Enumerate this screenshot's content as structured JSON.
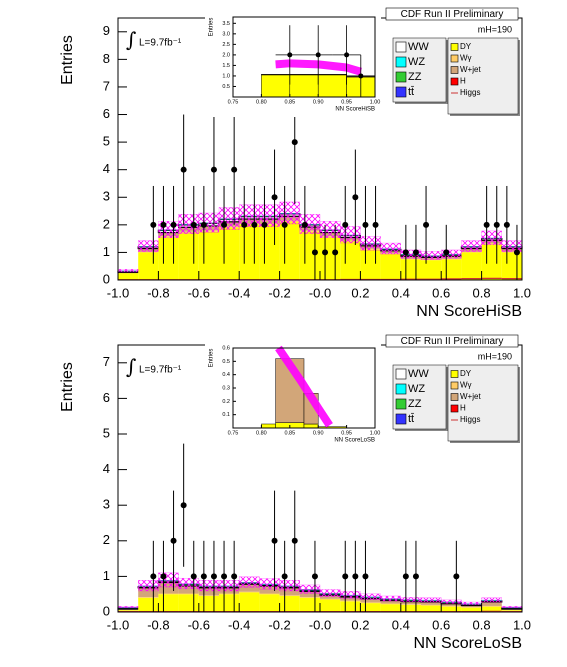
{
  "chart_data": [
    {
      "type": "stacked_histogram",
      "title": "CDF Run II Preliminary",
      "mass_label": "mH=190",
      "lumi_symbol": "∫",
      "lumi": "L=9.7fb⁻¹",
      "xlabel": "NN ScoreHiSB",
      "ylabel": "Entries",
      "xlim": [
        -1,
        1
      ],
      "ylim": [
        0,
        9.5
      ],
      "xticks": [
        {
          "value": -1,
          "label": "-1.0"
        },
        -0.8,
        -0.6,
        -0.4,
        -0.2,
        {
          "value": 0,
          "label": "-0.0"
        },
        0.2,
        0.4,
        0.6,
        0.8,
        {
          "value": 1,
          "label": "1.0"
        }
      ],
      "yticks": [
        0,
        1,
        2,
        3,
        4,
        5,
        6,
        7,
        8,
        9
      ],
      "bins": [
        -1,
        -0.9,
        -0.8,
        -0.7,
        -0.6,
        -0.5,
        -0.4,
        -0.3,
        -0.2,
        -0.1,
        0,
        0.1,
        0.2,
        0.3,
        0.4,
        0.5,
        0.6,
        0.7,
        0.8,
        0.9,
        1
      ],
      "series": [
        {
          "name": "DY",
          "color": "#ffff00",
          "values": [
            0.25,
            1.0,
            1.55,
            1.7,
            1.75,
            1.9,
            2.0,
            2.0,
            2.1,
            1.75,
            1.55,
            1.4,
            1.1,
            0.95,
            0.75,
            0.72,
            0.75,
            1.0,
            1.3,
            1.0
          ]
        },
        {
          "name": "Wγ",
          "color": "#ffcc66",
          "values": [
            0.01,
            0.03,
            0.04,
            0.05,
            0.05,
            0.05,
            0.05,
            0.05,
            0.05,
            0.04,
            0.04,
            0.03,
            0.03,
            0.02,
            0.02,
            0.02,
            0.02,
            0.03,
            0.03,
            0.03
          ]
        },
        {
          "name": "W+jet",
          "color": "#d2a679",
          "values": [
            0.02,
            0.1,
            0.12,
            0.15,
            0.15,
            0.15,
            0.15,
            0.15,
            0.15,
            0.12,
            0.12,
            0.1,
            0.1,
            0.08,
            0.08,
            0.07,
            0.08,
            0.1,
            0.1,
            0.1
          ]
        },
        {
          "name": "H",
          "color": "#ff0000",
          "values": [
            0.01,
            0.01,
            0.01,
            0.01,
            0.01,
            0.01,
            0.01,
            0.01,
            0.01,
            0.01,
            0.01,
            0.01,
            0.01,
            0.01,
            0.01,
            0.01,
            0.01,
            0.01,
            0.01,
            0.01
          ]
        },
        {
          "name": "WW",
          "color": "#ffffff",
          "values": [
            0.02,
            0.06,
            0.08,
            0.09,
            0.09,
            0.09,
            0.09,
            0.09,
            0.09,
            0.08,
            0.08,
            0.07,
            0.06,
            0.05,
            0.05,
            0.04,
            0.05,
            0.06,
            0.06,
            0.06
          ]
        },
        {
          "name": "WZ",
          "color": "#00ffff",
          "values": [
            0.01,
            0.01,
            0.01,
            0.01,
            0.01,
            0.01,
            0.01,
            0.01,
            0.01,
            0.01,
            0.01,
            0.01,
            0.01,
            0.01,
            0.01,
            0.01,
            0.01,
            0.01,
            0.01,
            0.01
          ]
        },
        {
          "name": "ZZ",
          "color": "#33cc33",
          "values": [
            0.01,
            0.01,
            0.01,
            0.01,
            0.01,
            0.01,
            0.01,
            0.01,
            0.01,
            0.01,
            0.01,
            0.01,
            0.01,
            0.01,
            0.01,
            0.01,
            0.01,
            0.01,
            0.01,
            0.01
          ]
        },
        {
          "name": "tt̄",
          "color": "#3333ff",
          "values": [
            0.01,
            0.01,
            0.01,
            0.01,
            0.01,
            0.01,
            0.01,
            0.01,
            0.01,
            0.01,
            0.01,
            0.01,
            0.01,
            0.01,
            0.01,
            0.01,
            0.01,
            0.01,
            0.01,
            0.01
          ]
        },
        {
          "name": "Higgs",
          "color": "#cc3333",
          "style": "line",
          "values": [
            0.01,
            0.01,
            0.01,
            0.01,
            0.01,
            0.01,
            0.01,
            0.01,
            0.01,
            0.01,
            0.01,
            0.02,
            0.02,
            0.02,
            0.03,
            0.03,
            0.04,
            0.05,
            0.06,
            0.05
          ]
        }
      ],
      "uncertainty": [
        0.05,
        0.2,
        0.3,
        0.35,
        0.35,
        0.4,
        0.4,
        0.4,
        0.4,
        0.35,
        0.3,
        0.3,
        0.25,
        0.2,
        0.15,
        0.15,
        0.15,
        0.2,
        0.25,
        0.2
      ],
      "uncertainty_color": "#ff00ff",
      "data": {
        "color": "#000000",
        "x": [
          -0.825,
          -0.775,
          -0.725,
          -0.675,
          -0.625,
          -0.575,
          -0.525,
          -0.475,
          -0.425,
          -0.375,
          -0.325,
          -0.275,
          -0.225,
          -0.175,
          -0.125,
          -0.075,
          -0.025,
          0.025,
          0.075,
          0.125,
          0.175,
          0.225,
          0.275,
          0.425,
          0.475,
          0.525,
          0.625,
          0.825,
          0.875,
          0.925,
          0.975
        ],
        "values": [
          2,
          2,
          2,
          4,
          2,
          2,
          4,
          2,
          4,
          2,
          2,
          2,
          3,
          2,
          5,
          2,
          1,
          1,
          1,
          2,
          3,
          2,
          2,
          1,
          1,
          2,
          1,
          2,
          2,
          2,
          1
        ],
        "errors": [
          1.41,
          1.41,
          1.41,
          2,
          1.41,
          1.41,
          2,
          1.41,
          2,
          1.41,
          1.41,
          1.41,
          1.73,
          1.41,
          2.24,
          1.41,
          1,
          1,
          1,
          1.41,
          1.73,
          1.41,
          1.41,
          1,
          1,
          1.41,
          1,
          1.41,
          1.41,
          1.41,
          1
        ]
      }
    },
    {
      "type": "inset_histogram",
      "xlabel": "NN ScoreHiSB",
      "ylabel": "Entries",
      "xlim": [
        0.75,
        1
      ],
      "ylim": [
        0,
        3.8
      ],
      "xticks": [
        0.75,
        {
          "value": 0.8,
          "label": "0.80"
        },
        0.85,
        {
          "value": 0.9,
          "label": "0.90"
        },
        0.95,
        {
          "value": 1,
          "label": "1.00"
        }
      ],
      "yticks": [
        0.5,
        {
          "value": 1,
          "label": "1.0"
        },
        1.5,
        {
          "value": 2,
          "label": "2.0"
        },
        2.5,
        {
          "value": 3,
          "label": "3.0"
        },
        3.5
      ],
      "bins": [
        0.75,
        0.8,
        0.85,
        0.9,
        0.95,
        1
      ],
      "series": [
        {
          "color": "#ffff00",
          "values": [
            0,
            1.05,
            1.05,
            1.05,
            0.95
          ]
        },
        {
          "color": "#d2a679",
          "values": [
            0,
            0.03,
            0.03,
            0.03,
            0.03
          ]
        }
      ],
      "band": {
        "color": "#ff00ff",
        "x": [
          0.825,
          0.85,
          0.9,
          0.95,
          0.975
        ],
        "values": [
          1.55,
          1.6,
          1.55,
          1.4,
          1.2
        ]
      },
      "data": {
        "color": "#000000",
        "x": [
          0.85,
          0.9,
          0.95,
          0.975
        ],
        "values": [
          2,
          2,
          2,
          1
        ],
        "errors": [
          1.41,
          1.41,
          1.41,
          1
        ]
      }
    },
    {
      "type": "stacked_histogram",
      "title": "CDF Run II Preliminary",
      "mass_label": "mH=190",
      "lumi_symbol": "∫",
      "lumi": "L=9.7fb⁻¹",
      "xlabel": "NN ScoreLoSB",
      "ylabel": "Entries",
      "xlim": [
        -1,
        1
      ],
      "ylim": [
        0,
        7.5
      ],
      "xticks": [
        {
          "value": -1,
          "label": "-1.0"
        },
        -0.8,
        -0.6,
        -0.4,
        -0.2,
        {
          "value": 0,
          "label": "-0.0"
        },
        0.2,
        0.4,
        0.6,
        0.8,
        {
          "value": 1,
          "label": "1.0"
        }
      ],
      "yticks": [
        0,
        1,
        2,
        3,
        4,
        5,
        6,
        7
      ],
      "bins": [
        -1,
        -0.9,
        -0.8,
        -0.7,
        -0.6,
        -0.5,
        -0.4,
        -0.3,
        -0.2,
        -0.1,
        0,
        0.1,
        0.2,
        0.3,
        0.4,
        0.5,
        0.6,
        0.7,
        0.8,
        0.9,
        1
      ],
      "series": [
        {
          "name": "DY",
          "color": "#ffff00",
          "values": [
            0.05,
            0.4,
            0.5,
            0.5,
            0.45,
            0.5,
            0.55,
            0.5,
            0.45,
            0.4,
            0.35,
            0.3,
            0.25,
            0.22,
            0.2,
            0.18,
            0.15,
            0.12,
            0.15,
            0.05
          ]
        },
        {
          "name": "Wγ",
          "color": "#ffcc66",
          "values": [
            0.01,
            0.02,
            0.02,
            0.02,
            0.02,
            0.02,
            0.02,
            0.02,
            0.02,
            0.02,
            0.02,
            0.02,
            0.02,
            0.02,
            0.02,
            0.02,
            0.02,
            0.02,
            0.02,
            0.01
          ]
        },
        {
          "name": "W+jet",
          "color": "#d2a679",
          "values": [
            0.03,
            0.25,
            0.3,
            0.2,
            0.2,
            0.15,
            0.2,
            0.2,
            0.2,
            0.15,
            0.1,
            0.1,
            0.1,
            0.08,
            0.07,
            0.08,
            0.07,
            0.05,
            0.12,
            0.03
          ]
        },
        {
          "name": "H",
          "color": "#ff0000",
          "values": [
            0.01,
            0.01,
            0.01,
            0.01,
            0.01,
            0.01,
            0.01,
            0.01,
            0.01,
            0.01,
            0.01,
            0.01,
            0.01,
            0.01,
            0.01,
            0.01,
            0.01,
            0.01,
            0.01,
            0.01
          ]
        },
        {
          "name": "WW",
          "color": "#ffffff",
          "values": [
            0.01,
            0.03,
            0.04,
            0.04,
            0.03,
            0.03,
            0.03,
            0.03,
            0.03,
            0.03,
            0.02,
            0.02,
            0.02,
            0.02,
            0.02,
            0.02,
            0.01,
            0.01,
            0.01,
            0.01
          ]
        },
        {
          "name": "WZ",
          "color": "#00ffff",
          "values": [
            0.01,
            0.01,
            0.01,
            0.01,
            0.01,
            0.01,
            0.01,
            0.01,
            0.01,
            0.01,
            0.01,
            0.01,
            0.01,
            0.01,
            0.01,
            0.01,
            0.01,
            0.01,
            0.01,
            0.01
          ]
        },
        {
          "name": "ZZ",
          "color": "#33cc33",
          "values": [
            0.01,
            0.01,
            0.01,
            0.01,
            0.01,
            0.01,
            0.01,
            0.01,
            0.01,
            0.01,
            0.01,
            0.01,
            0.01,
            0.01,
            0.01,
            0.01,
            0.01,
            0.01,
            0.01,
            0.01
          ]
        },
        {
          "name": "tt̄",
          "color": "#3333ff",
          "values": [
            0.01,
            0.01,
            0.01,
            0.01,
            0.01,
            0.01,
            0.01,
            0.01,
            0.01,
            0.01,
            0.01,
            0.01,
            0.01,
            0.01,
            0.01,
            0.01,
            0.01,
            0.01,
            0.01,
            0.01
          ]
        },
        {
          "name": "Higgs",
          "color": "#cc3333",
          "style": "line",
          "values": [
            0.01,
            0.01,
            0.01,
            0.01,
            0.01,
            0.01,
            0.01,
            0.01,
            0.01,
            0.01,
            0.01,
            0.01,
            0.01,
            0.01,
            0.01,
            0.01,
            0.01,
            0.01,
            0.02,
            0.01
          ]
        }
      ],
      "uncertainty": [
        0.02,
        0.15,
        0.2,
        0.15,
        0.15,
        0.15,
        0.15,
        0.15,
        0.15,
        0.12,
        0.1,
        0.1,
        0.08,
        0.07,
        0.06,
        0.06,
        0.05,
        0.04,
        0.06,
        0.02
      ],
      "uncertainty_color": "#ff00ff",
      "data": {
        "color": "#000000",
        "x": [
          -0.825,
          -0.775,
          -0.725,
          -0.675,
          -0.625,
          -0.575,
          -0.525,
          -0.475,
          -0.425,
          -0.225,
          -0.175,
          -0.125,
          -0.025,
          0.125,
          0.175,
          0.225,
          0.425,
          0.475,
          0.675
        ],
        "values": [
          1,
          1,
          2,
          3,
          1,
          1,
          1,
          1,
          1,
          2,
          1,
          2,
          1,
          1,
          1,
          1,
          1,
          1,
          1
        ],
        "errors": [
          1,
          1,
          1.41,
          1.73,
          1,
          1,
          1,
          1,
          1,
          1.41,
          1,
          1.41,
          1,
          1,
          1,
          1,
          1,
          1,
          1
        ]
      }
    },
    {
      "type": "inset_histogram",
      "xlabel": "NN ScoreLoSB",
      "ylabel": "Entries",
      "xlim": [
        0.75,
        1
      ],
      "ylim": [
        0,
        0.6
      ],
      "xticks": [
        0.75,
        {
          "value": 0.8,
          "label": "0.80"
        },
        0.85,
        {
          "value": 0.9,
          "label": "0.90"
        },
        0.95,
        {
          "value": 1,
          "label": "1.00"
        }
      ],
      "yticks": [
        0.1,
        0.2,
        0.3,
        0.4,
        0.5,
        0.6
      ],
      "bins": [
        0.75,
        0.8,
        0.825,
        0.875,
        0.9,
        0.95,
        1
      ],
      "series": [
        {
          "color": "#ffff00",
          "values": [
            0,
            0.03,
            0.04,
            0.03,
            0.01,
            0
          ]
        },
        {
          "color": "#d2a679",
          "values": [
            0,
            0,
            0.48,
            0.23,
            0,
            0
          ]
        }
      ],
      "band": {
        "color": "#ff00ff",
        "x": [
          0.83,
          0.87,
          0.9,
          0.92
        ],
        "values": [
          0.6,
          0.35,
          0.15,
          0.02
        ]
      }
    }
  ]
}
